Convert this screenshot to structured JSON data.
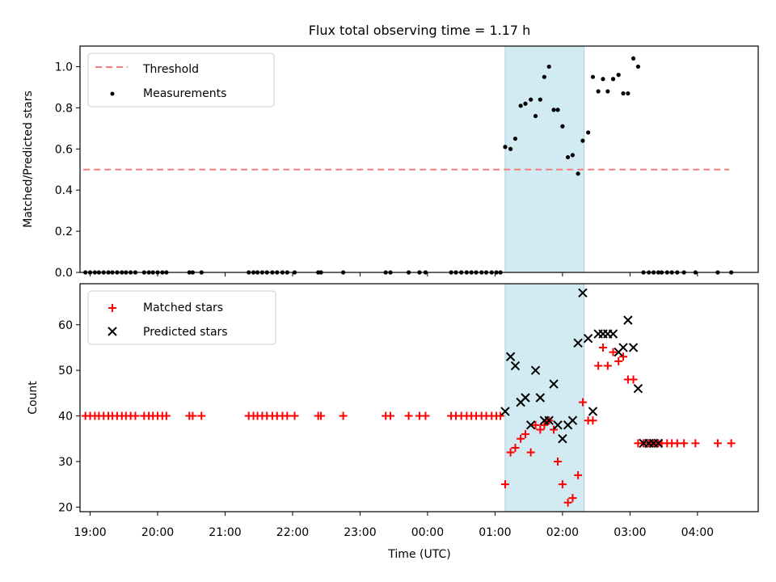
{
  "figure": {
    "title": "Flux total observing time = 1.17 h"
  },
  "colors": {
    "threshold": "#f08080",
    "measurement": "#000000",
    "matched": "#ff0000",
    "predicted": "#000000",
    "band": "#add8e6"
  },
  "chart_data": [
    {
      "type": "scatter",
      "panel": "top",
      "ylabel": "Matched/Predicted stars",
      "xlim": [
        18.85,
        28.9
      ],
      "ylim": [
        0,
        1.1
      ],
      "yticks": [
        "0.0",
        "0.2",
        "0.4",
        "0.6",
        "0.8",
        "1.0"
      ],
      "shaded_interval": [
        25.15,
        26.32
      ],
      "legend": {
        "position": "upper-left",
        "threshold_label": "Threshold",
        "measurements_label": "Measurements"
      },
      "threshold": {
        "y": 0.5,
        "x_range": [
          18.9,
          28.47
        ]
      },
      "measurements": {
        "x": [
          18.93,
          19.0,
          19.07,
          19.13,
          19.2,
          19.27,
          19.33,
          19.4,
          19.47,
          19.53,
          19.6,
          19.67,
          19.8,
          19.87,
          19.93,
          20.0,
          20.07,
          20.13,
          20.47,
          20.52,
          20.65,
          21.35,
          21.42,
          21.48,
          21.55,
          21.62,
          21.7,
          21.77,
          21.85,
          21.92,
          22.03,
          22.38,
          22.42,
          22.75,
          23.38,
          23.45,
          23.72,
          23.88,
          23.97,
          24.35,
          24.42,
          24.5,
          24.58,
          24.65,
          24.72,
          24.8,
          24.87,
          24.95,
          25.02,
          25.08,
          25.15,
          25.23,
          25.3,
          25.38,
          25.45,
          25.53,
          25.6,
          25.67,
          25.73,
          25.8,
          25.87,
          25.93,
          26.0,
          26.08,
          26.15,
          26.23,
          26.3,
          26.38,
          26.45,
          26.53,
          26.6,
          26.67,
          26.75,
          26.83,
          26.9,
          26.97,
          27.05,
          27.12,
          27.2,
          27.28,
          27.35,
          27.42,
          27.47,
          27.55,
          27.62,
          27.7,
          27.8,
          27.97,
          28.3,
          28.5
        ],
        "y": [
          0,
          0,
          0,
          0,
          0,
          0,
          0,
          0,
          0,
          0,
          0,
          0,
          0,
          0,
          0,
          0,
          0,
          0,
          0,
          0,
          0,
          0,
          0,
          0,
          0,
          0,
          0,
          0,
          0,
          0,
          0,
          0,
          0,
          0,
          0,
          0,
          0,
          0,
          0,
          0,
          0,
          0,
          0,
          0,
          0,
          0,
          0,
          0,
          0,
          0,
          0.61,
          0.6,
          0.65,
          0.81,
          0.82,
          0.84,
          0.76,
          0.84,
          0.95,
          1.0,
          0.79,
          0.79,
          0.71,
          0.56,
          0.57,
          0.48,
          0.64,
          0.68,
          0.95,
          0.88,
          0.94,
          0.88,
          0.94,
          0.96,
          0.87,
          0.87,
          1.04,
          1.0,
          0,
          0,
          0,
          0,
          0,
          0,
          0,
          0,
          0,
          0,
          0,
          0
        ]
      }
    },
    {
      "type": "scatter",
      "panel": "bottom",
      "ylabel": "Count",
      "xlabel": "Time (UTC)",
      "xlim": [
        18.85,
        28.9
      ],
      "ylim": [
        19,
        69
      ],
      "yticks": [
        "20",
        "30",
        "40",
        "50",
        "60"
      ],
      "xticks": [
        "19:00",
        "20:00",
        "21:00",
        "22:00",
        "23:00",
        "00:00",
        "01:00",
        "02:00",
        "03:00",
        "04:00"
      ],
      "shaded_interval": [
        25.15,
        26.32
      ],
      "legend": {
        "position": "upper-left"
      },
      "series": [
        {
          "name": "Matched stars",
          "x": [
            18.93,
            19.0,
            19.07,
            19.13,
            19.2,
            19.27,
            19.33,
            19.4,
            19.47,
            19.53,
            19.6,
            19.67,
            19.8,
            19.87,
            19.93,
            20.0,
            20.07,
            20.13,
            20.47,
            20.52,
            20.65,
            21.35,
            21.42,
            21.48,
            21.55,
            21.62,
            21.7,
            21.77,
            21.85,
            21.92,
            22.03,
            22.38,
            22.42,
            22.75,
            23.38,
            23.45,
            23.72,
            23.88,
            23.97,
            24.35,
            24.42,
            24.5,
            24.58,
            24.65,
            24.72,
            24.8,
            24.87,
            24.95,
            25.02,
            25.08,
            25.15,
            25.23,
            25.3,
            25.38,
            25.45,
            25.53,
            25.6,
            25.67,
            25.73,
            25.8,
            25.87,
            25.93,
            26.0,
            26.08,
            26.15,
            26.23,
            26.3,
            26.38,
            26.45,
            26.53,
            26.6,
            26.67,
            26.75,
            26.83,
            26.9,
            26.97,
            27.05,
            27.12,
            27.2,
            27.28,
            27.35,
            27.42,
            27.47,
            27.55,
            27.62,
            27.7,
            27.8,
            27.97,
            28.3,
            28.5
          ],
          "y": [
            40,
            40,
            40,
            40,
            40,
            40,
            40,
            40,
            40,
            40,
            40,
            40,
            40,
            40,
            40,
            40,
            40,
            40,
            40,
            40,
            40,
            40,
            40,
            40,
            40,
            40,
            40,
            40,
            40,
            40,
            40,
            40,
            40,
            40,
            40,
            40,
            40,
            40,
            40,
            40,
            40,
            40,
            40,
            40,
            40,
            40,
            40,
            40,
            40,
            40,
            25,
            32,
            33,
            35,
            36,
            32,
            38,
            37,
            38,
            39,
            37,
            30,
            25,
            21,
            22,
            27,
            43,
            39,
            39,
            51,
            55,
            51,
            54,
            52,
            53,
            48,
            48,
            34,
            34,
            34,
            34,
            34,
            34,
            34,
            34,
            34,
            34,
            34,
            34,
            34
          ]
        },
        {
          "name": "Predicted stars",
          "x": [
            25.15,
            25.23,
            25.3,
            25.38,
            25.45,
            25.53,
            25.6,
            25.67,
            25.73,
            25.8,
            25.87,
            25.93,
            26.0,
            26.08,
            26.15,
            26.23,
            26.3,
            26.38,
            26.45,
            26.53,
            26.6,
            26.67,
            26.75,
            26.83,
            26.9,
            26.97,
            27.05,
            27.12,
            27.2,
            27.28,
            27.35,
            27.42
          ],
          "y": [
            41,
            53,
            51,
            43,
            44,
            38,
            50,
            44,
            39,
            39,
            47,
            38,
            35,
            38,
            39,
            56,
            67,
            57,
            41,
            58,
            58,
            58,
            58,
            54,
            55,
            61,
            55,
            46,
            34,
            34,
            34,
            34
          ]
        }
      ]
    }
  ]
}
